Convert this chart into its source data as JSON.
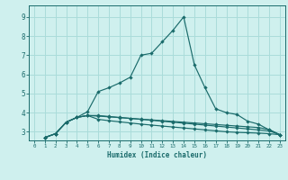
{
  "xlabel": "Humidex (Indice chaleur)",
  "background_color": "#cff0ee",
  "grid_color": "#aadcda",
  "line_color": "#1a6b6b",
  "xlim": [
    -0.5,
    23.5
  ],
  "ylim": [
    2.55,
    9.6
  ],
  "xticks": [
    0,
    1,
    2,
    3,
    4,
    5,
    6,
    7,
    8,
    9,
    10,
    11,
    12,
    13,
    14,
    15,
    16,
    17,
    18,
    19,
    20,
    21,
    22,
    23
  ],
  "yticks": [
    3,
    4,
    5,
    6,
    7,
    8,
    9
  ],
  "series": [
    [
      2.7,
      2.9,
      3.5,
      3.75,
      4.05,
      5.1,
      5.3,
      5.55,
      5.85,
      7.0,
      7.1,
      7.7,
      8.3,
      9.0,
      6.5,
      5.3,
      4.2,
      4.0,
      3.9,
      3.55,
      3.4,
      3.1,
      2.85
    ],
    [
      2.7,
      2.9,
      3.5,
      3.75,
      3.85,
      3.85,
      3.8,
      3.75,
      3.7,
      3.65,
      3.6,
      3.55,
      3.5,
      3.45,
      3.4,
      3.35,
      3.3,
      3.25,
      3.2,
      3.15,
      3.1,
      3.05,
      2.85
    ],
    [
      2.7,
      2.9,
      3.5,
      3.75,
      3.85,
      3.82,
      3.78,
      3.74,
      3.7,
      3.66,
      3.62,
      3.58,
      3.54,
      3.5,
      3.46,
      3.42,
      3.38,
      3.34,
      3.3,
      3.26,
      3.22,
      3.12,
      2.85
    ],
    [
      2.7,
      2.9,
      3.5,
      3.75,
      3.85,
      3.65,
      3.58,
      3.52,
      3.46,
      3.4,
      3.35,
      3.3,
      3.25,
      3.2,
      3.15,
      3.1,
      3.05,
      3.0,
      2.97,
      2.95,
      2.93,
      2.9,
      2.85
    ]
  ],
  "x_series": [
    [
      1,
      2,
      3,
      4,
      5,
      6,
      7,
      8,
      9,
      10,
      11,
      12,
      13,
      14,
      15,
      16,
      17,
      18,
      19,
      20,
      21,
      22,
      23
    ],
    [
      1,
      2,
      3,
      4,
      5,
      6,
      7,
      8,
      9,
      10,
      11,
      12,
      13,
      14,
      15,
      16,
      17,
      18,
      19,
      20,
      21,
      22,
      23
    ],
    [
      1,
      2,
      3,
      4,
      5,
      6,
      7,
      8,
      9,
      10,
      11,
      12,
      13,
      14,
      15,
      16,
      17,
      18,
      19,
      20,
      21,
      22,
      23
    ],
    [
      1,
      2,
      3,
      4,
      5,
      6,
      7,
      8,
      9,
      10,
      11,
      12,
      13,
      14,
      15,
      16,
      17,
      18,
      19,
      20,
      21,
      22,
      23
    ]
  ]
}
